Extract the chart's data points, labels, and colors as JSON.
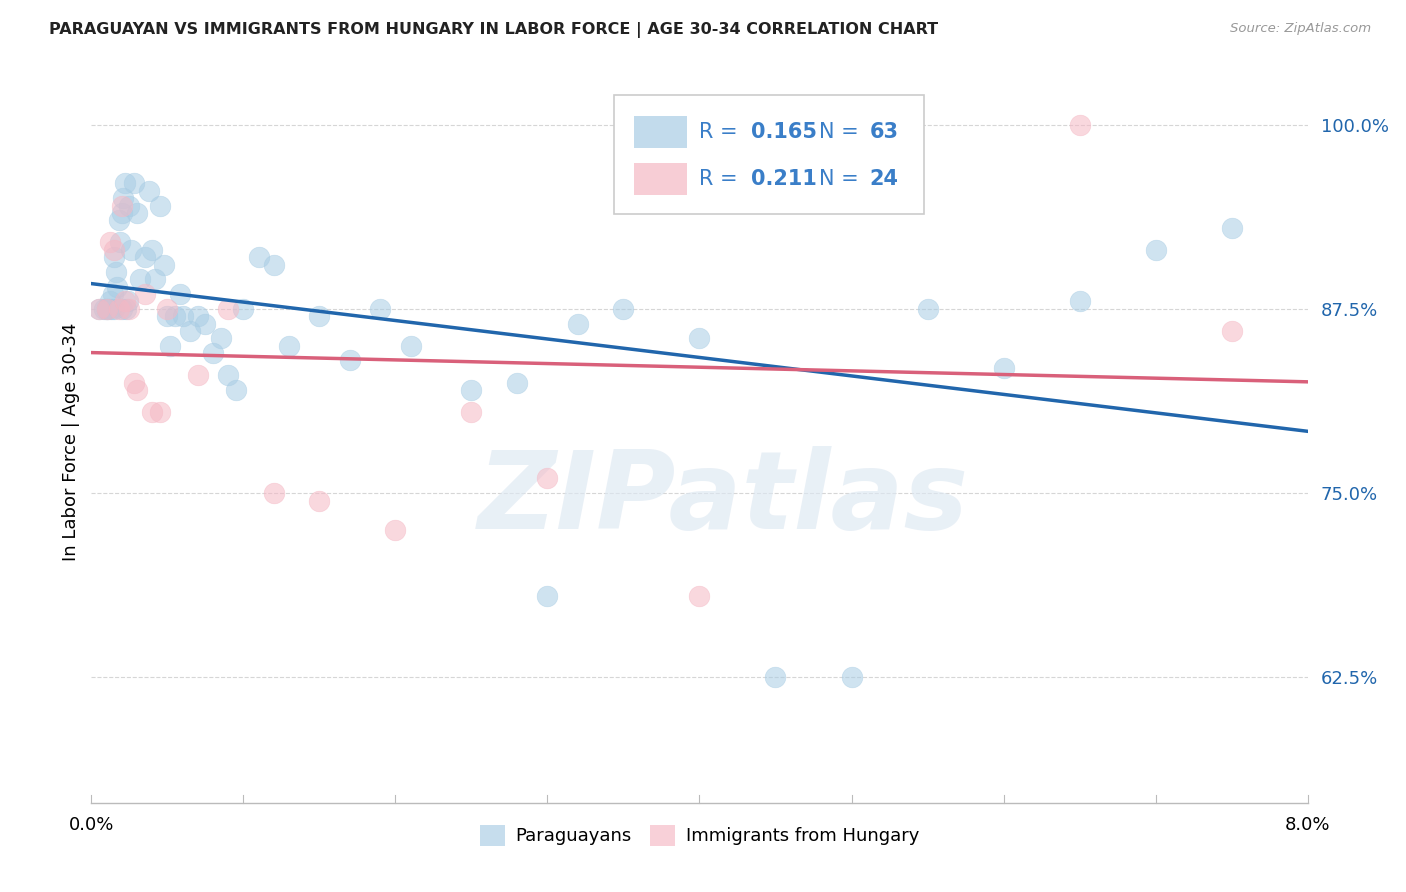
{
  "title": "PARAGUAYAN VS IMMIGRANTS FROM HUNGARY IN LABOR FORCE | AGE 30-34 CORRELATION CHART",
  "source": "Source: ZipAtlas.com",
  "ylabel": "In Labor Force | Age 30-34",
  "xmin": 0.0,
  "xmax": 8.0,
  "ymin": 54.0,
  "ymax": 103.0,
  "yticks": [
    62.5,
    75.0,
    87.5,
    100.0
  ],
  "ytick_labels": [
    "62.5%",
    "75.0%",
    "87.5%",
    "100.0%"
  ],
  "blue_R": 0.165,
  "blue_N": 63,
  "pink_R": 0.211,
  "pink_N": 24,
  "blue_color": "#a8cce4",
  "pink_color": "#f5b8c4",
  "blue_line_color": "#2166ac",
  "pink_line_color": "#d9607a",
  "legend1_label": "Paraguayans",
  "legend2_label": "Immigrants from Hungary",
  "watermark": "ZIPatlas",
  "blue_x": [
    0.05,
    0.08,
    0.1,
    0.12,
    0.13,
    0.14,
    0.15,
    0.16,
    0.17,
    0.18,
    0.19,
    0.2,
    0.21,
    0.22,
    0.23,
    0.24,
    0.25,
    0.26,
    0.28,
    0.3,
    0.32,
    0.35,
    0.38,
    0.4,
    0.42,
    0.45,
    0.48,
    0.5,
    0.52,
    0.55,
    0.58,
    0.6,
    0.65,
    0.7,
    0.75,
    0.8,
    0.85,
    0.9,
    0.95,
    1.0,
    1.1,
    1.2,
    1.3,
    1.5,
    1.7,
    1.9,
    2.1,
    2.5,
    2.8,
    3.0,
    3.2,
    3.5,
    4.0,
    4.5,
    5.0,
    5.5,
    6.0,
    6.5,
    7.0,
    7.5,
    0.1,
    0.15,
    0.2
  ],
  "blue_y": [
    87.5,
    87.5,
    87.5,
    88.0,
    87.5,
    88.5,
    91.0,
    90.0,
    89.0,
    93.5,
    92.0,
    94.0,
    95.0,
    96.0,
    87.5,
    88.0,
    94.5,
    91.5,
    96.0,
    94.0,
    89.5,
    91.0,
    95.5,
    91.5,
    89.5,
    94.5,
    90.5,
    87.0,
    85.0,
    87.0,
    88.5,
    87.0,
    86.0,
    87.0,
    86.5,
    84.5,
    85.5,
    83.0,
    82.0,
    87.5,
    91.0,
    90.5,
    85.0,
    87.0,
    84.0,
    87.5,
    85.0,
    82.0,
    82.5,
    68.0,
    86.5,
    87.5,
    85.5,
    62.5,
    62.5,
    87.5,
    83.5,
    88.0,
    91.5,
    93.0,
    87.5,
    87.5,
    87.5
  ],
  "pink_x": [
    0.05,
    0.1,
    0.12,
    0.15,
    0.18,
    0.2,
    0.22,
    0.25,
    0.28,
    0.3,
    0.35,
    0.4,
    0.45,
    0.5,
    0.7,
    0.9,
    1.2,
    1.5,
    2.0,
    2.5,
    3.0,
    4.0,
    6.5,
    7.5
  ],
  "pink_y": [
    87.5,
    87.5,
    92.0,
    91.5,
    87.5,
    94.5,
    88.0,
    87.5,
    82.5,
    82.0,
    88.5,
    80.5,
    80.5,
    87.5,
    83.0,
    87.5,
    75.0,
    74.5,
    72.5,
    80.5,
    76.0,
    68.0,
    100.0,
    86.0
  ],
  "legend_color": "#3a7ec8"
}
